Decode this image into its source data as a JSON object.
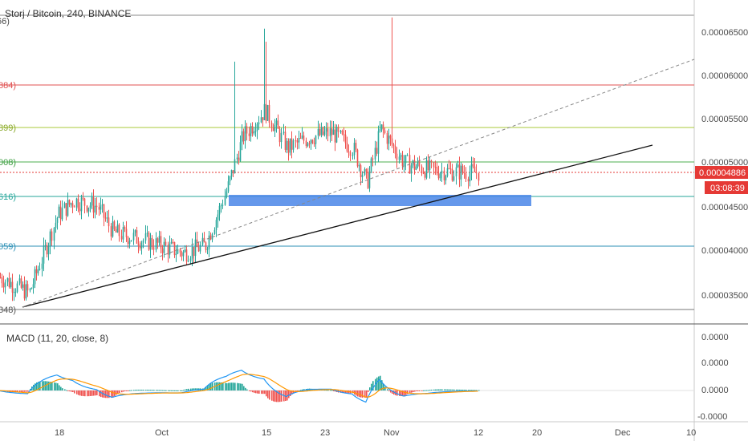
{
  "chart_title": "Storj / Bitcoin, 240, BINANCE",
  "colors": {
    "up": "#26a69a",
    "down": "#ef5350",
    "macd_line": "#2196f3",
    "signal_line": "#ff9800",
    "support_zone": "#4a86e8",
    "trendline": "#000000"
  },
  "price_axis": {
    "ticks": [
      "0.00006500",
      "0.00006000",
      "0.00005500",
      "0.00005000",
      "0.00004500",
      "0.00004000",
      "0.00003500"
    ],
    "current_price": "0.00004886",
    "countdown": "03:08:39"
  },
  "time_axis": {
    "ticks": [
      "18",
      "Oct",
      "15",
      "23",
      "Nov",
      "12",
      "20",
      "Dec",
      "10"
    ]
  },
  "fib_labels": [
    "66)",
    "884)",
    "899)",
    "008)",
    "616)",
    "059)",
    "348)"
  ],
  "macd": {
    "label": "MACD (11, 20, close, 8)",
    "ticks": [
      "0.0000",
      "0.0000",
      "0.0000",
      "-0.0000"
    ]
  },
  "chart_data": {
    "type": "candlestick",
    "symbol": "Storj / Bitcoin",
    "timeframe": "240",
    "exchange": "BINANCE",
    "ylim": [
      3.31e-05,
      6.705e-05
    ],
    "key_prices": [
      {
        "level": 6.55e-05,
        "kind": "spike high"
      },
      {
        "level": 5.96e-05,
        "kind": "fib"
      },
      {
        "level": 5.49e-05,
        "kind": "fib"
      },
      {
        "level": 5.12e-05,
        "kind": "fib"
      },
      {
        "level": 4.74e-05,
        "kind": "fib"
      },
      {
        "level": 4.1e-05,
        "kind": "fib"
      },
      {
        "level": 3.4e-05,
        "kind": "fib"
      }
    ],
    "support_zone": [
      4.64e-05,
      4.76e-05
    ],
    "trend_path": [
      {
        "x": "Sep 14",
        "close": 3.68e-05
      },
      {
        "x": "Sep 16",
        "close": 3.5e-05
      },
      {
        "x": "Sep 18",
        "close": 4.4e-05
      },
      {
        "x": "Sep 20",
        "close": 4.57e-05
      },
      {
        "x": "Sep 23",
        "close": 4.5e-05
      },
      {
        "x": "Sep 25",
        "close": 4.2e-05
      },
      {
        "x": "Sep 28",
        "close": 4.13e-05
      },
      {
        "x": "Oct 1",
        "close": 4.05e-05
      },
      {
        "x": "Oct 4",
        "close": 3.96e-05
      },
      {
        "x": "Oct 7",
        "close": 4.05e-05
      },
      {
        "x": "Oct 10",
        "close": 4.72e-05
      },
      {
        "x": "Oct 12",
        "close": 5.3e-05
      },
      {
        "x": "Oct 15",
        "close": 5.61e-05
      },
      {
        "x": "Oct 18",
        "close": 5.17e-05
      },
      {
        "x": "Oct 21",
        "close": 5.3e-05
      },
      {
        "x": "Oct 24",
        "close": 5.35e-05
      },
      {
        "x": "Oct 27",
        "close": 5.17e-05
      },
      {
        "x": "Oct 29",
        "close": 4.77e-05
      },
      {
        "x": "Oct 31",
        "close": 5.4e-05
      },
      {
        "x": "Nov 3",
        "close": 5e-05
      },
      {
        "x": "Nov 6",
        "close": 4.92e-05
      },
      {
        "x": "Nov 9",
        "close": 4.9e-05
      },
      {
        "x": "Nov 12",
        "close": 4.89e-05
      }
    ]
  }
}
